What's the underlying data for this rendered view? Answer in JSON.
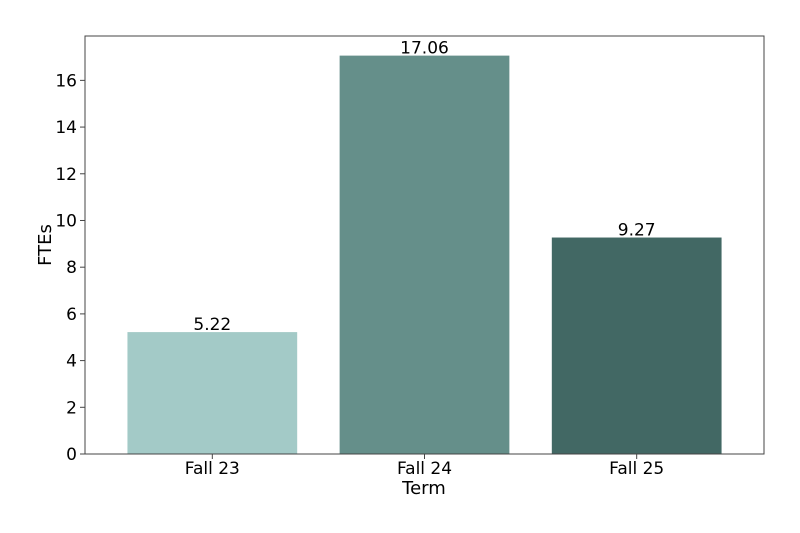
{
  "chart_data": {
    "type": "bar",
    "title": "",
    "xlabel": "Term",
    "ylabel": "FTEs",
    "categories": [
      "Fall 23",
      "Fall 24",
      "Fall 25"
    ],
    "values": [
      5.22,
      17.06,
      9.27
    ],
    "value_labels": [
      "5.22",
      "17.06",
      "9.27"
    ],
    "colors": [
      "#a3cac7",
      "#658f8a",
      "#426864"
    ],
    "ylim": [
      0,
      17.9
    ],
    "yticks": [
      0,
      2,
      4,
      6,
      8,
      10,
      12,
      14,
      16
    ],
    "ytick_labels": [
      "0",
      "2",
      "4",
      "6",
      "8",
      "10",
      "12",
      "14",
      "16"
    ],
    "grid": false,
    "legend": "none"
  }
}
